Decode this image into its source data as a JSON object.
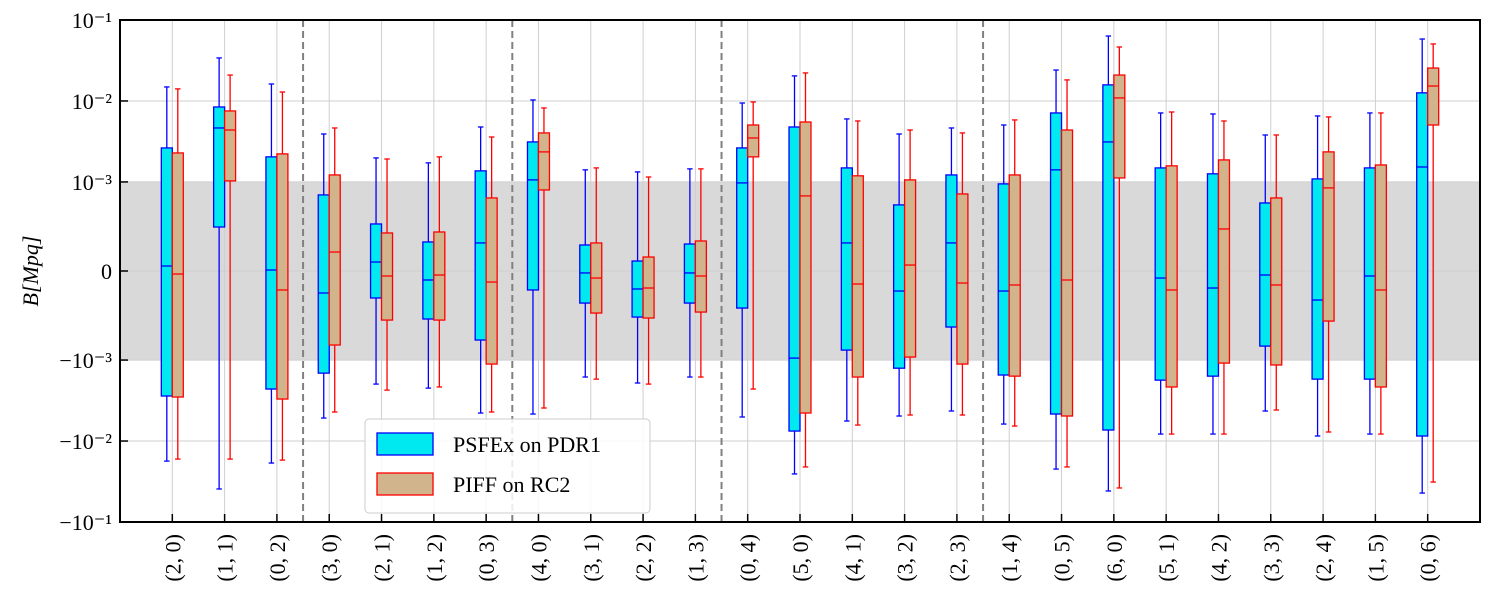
{
  "chart_data": {
    "type": "box",
    "ylabel": "B[Mpq]",
    "yscale": "symlog",
    "linthresh": 0.001,
    "ylim": [
      -0.1,
      0.1
    ],
    "yticks": [
      {
        "value": -0.1,
        "label": "−10⁻¹"
      },
      {
        "value": -0.01,
        "label": "−10⁻²"
      },
      {
        "value": -0.001,
        "label": "−10⁻³"
      },
      0,
      {
        "value": 0.001,
        "label": "10⁻³"
      },
      {
        "value": 0.01,
        "label": "10⁻²"
      },
      {
        "value": 0.1,
        "label": "10⁻¹"
      }
    ],
    "xlim": [
      -1,
      25
    ],
    "grid": true,
    "legend": "lower left",
    "group_separators": [
      2.5,
      6.5,
      10.5,
      15.5
    ],
    "categories": [
      "(2, 0)",
      "(1, 1)",
      "(0, 2)",
      "(3, 0)",
      "(2, 1)",
      "(1, 2)",
      "(0, 3)",
      "(4, 0)",
      "(3, 1)",
      "(2, 2)",
      "(1, 3)",
      "(0, 4)",
      "(5, 0)",
      "(4, 1)",
      "(3, 2)",
      "(2, 3)",
      "(1, 4)",
      "(0, 5)",
      "(6, 0)",
      "(5, 1)",
      "(4, 2)",
      "(3, 3)",
      "(2, 4)",
      "(1, 5)",
      "(0, 6)"
    ],
    "series": [
      {
        "name": "PSFEx on PDR1",
        "color": "#00e8f0",
        "edgecolor": "#0000ff",
        "whishi": [
          0.0149,
          0.034,
          0.0162,
          0.00391,
          0.00198,
          0.00172,
          0.00477,
          0.0103,
          0.00141,
          0.00133,
          0.00145,
          0.00944,
          0.0204,
          0.006,
          0.00391,
          0.00464,
          0.00505,
          0.0241,
          0.0634,
          0.00711,
          0.00691,
          0.0038,
          0.00653,
          0.00711,
          0.0582
        ],
        "q3": [
          0.00263,
          0.00843,
          0.00204,
          0.000854,
          0.000528,
          0.000326,
          0.00137,
          0.00312,
          0.000292,
          0.000112,
          0.000303,
          0.00263,
          0.00477,
          0.00149,
          0.000742,
          0.00122,
          0.000978,
          0.00711,
          0.0158,
          0.00149,
          0.00126,
          0.000764,
          0.00109,
          0.00149,
          0.0126
        ],
        "median": [
          5.6e-05,
          0.00464,
          1.1e-05,
          -0.000247,
          0.000101,
          -0.000101,
          0.000315,
          0.00106,
          -2.2e-05,
          -0.000202,
          -2.2e-05,
          0.000989,
          -0.000978,
          0.000315,
          -0.000225,
          0.000315,
          -0.000225,
          0.00141,
          0.00312,
          -7.9e-05,
          -0.000191,
          -4.5e-05,
          -0.000326,
          -5.6e-05,
          0.00153
        ],
        "q1": [
          -0.00278,
          0.000494,
          -0.00228,
          -0.00145,
          -0.000303,
          -0.000539,
          -0.000775,
          -0.000213,
          -0.00036,
          -0.000517,
          -0.00036,
          -0.000416,
          -0.00753,
          -0.000888,
          -0.00126,
          -0.000629,
          -0.00153,
          -0.00464,
          -0.00731,
          -0.00177,
          -0.00158,
          -0.000843,
          -0.00172,
          -0.00172,
          -0.00867
        ],
        "whislo": [
          -0.0177,
          -0.0391,
          -0.0187,
          -0.0052,
          -0.00198,
          -0.00222,
          -0.00451,
          -0.00464,
          -0.00162,
          -0.00192,
          -0.00162,
          -0.00505,
          -0.0255,
          -0.00566,
          -0.00491,
          -0.00426,
          -0.00617,
          -0.0222,
          -0.0414,
          -0.0082,
          -0.0082,
          -0.00426,
          -0.00867,
          -0.0082,
          -0.0439
        ]
      },
      {
        "name": "PIFF on RC2",
        "color": "#d2b48c",
        "edgecolor": "#ff0000",
        "whishi": [
          0.0141,
          0.0209,
          0.0129,
          0.00464,
          0.00192,
          0.00204,
          0.00359,
          0.0082,
          0.00149,
          0.00115,
          0.00145,
          0.00972,
          0.0222,
          0.00566,
          0.00438,
          0.00403,
          0.00583,
          0.0182,
          0.0464,
          0.00731,
          0.00566,
          0.0038,
          0.00635,
          0.00711,
          0.0506
        ],
        "q3": [
          0.00228,
          0.00753,
          0.00222,
          0.00122,
          0.000427,
          0.000438,
          0.00082,
          0.00403,
          0.000315,
          0.000157,
          0.000337,
          0.00505,
          0.0055,
          0.00119,
          0.00106,
          0.000865,
          0.00122,
          0.00438,
          0.0209,
          0.00158,
          0.00187,
          0.00082,
          0.00235,
          0.00162,
          0.0255
        ],
        "median": [
          -3.4e-05,
          0.00438,
          -0.000213,
          0.000213,
          -5.6e-05,
          -4.5e-05,
          -0.000124,
          0.00235,
          -7.9e-05,
          -0.000191,
          -5.6e-05,
          0.00349,
          0.000843,
          -0.000146,
          6.7e-05,
          -0.000135,
          -0.000157,
          -0.000101,
          0.0109,
          -0.000213,
          0.000472,
          -0.000157,
          0.000933,
          -0.000213,
          0.0153
        ],
        "q1": [
          -0.00286,
          0.00103,
          -0.00303,
          -0.000831,
          -0.000551,
          -0.000551,
          -0.00112,
          0.00091,
          -0.000472,
          -0.000528,
          -0.000461,
          0.00204,
          -0.00451,
          -0.00162,
          -0.000966,
          -0.00112,
          -0.00158,
          -0.00491,
          0.00112,
          -0.00215,
          -0.00109,
          -0.00115,
          -0.000562,
          -0.00215,
          0.00505
        ],
        "whislo": [
          -0.0167,
          -0.0167,
          -0.0172,
          -0.00438,
          -0.00235,
          -0.00215,
          -0.00438,
          -0.00391,
          -0.00172,
          -0.00198,
          -0.00162,
          -0.00228,
          -0.0209,
          -0.00635,
          -0.00477,
          -0.00477,
          -0.00653,
          -0.0209,
          -0.038,
          -0.0082,
          -0.0082,
          -0.00414,
          -0.00774,
          -0.0082,
          -0.0321
        ]
      }
    ]
  }
}
